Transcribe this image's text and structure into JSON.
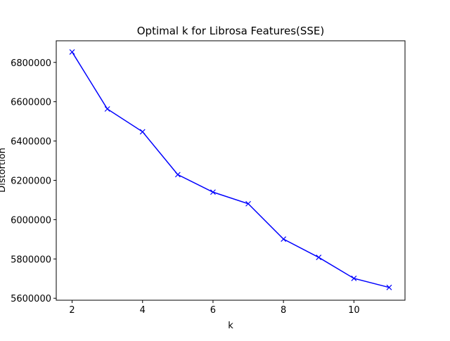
{
  "chart_data": {
    "type": "line",
    "title": "Optimal k for Librosa Features(SSE)",
    "xlabel": "k",
    "ylabel": "Distortion",
    "x": [
      2,
      3,
      4,
      5,
      6,
      7,
      8,
      9,
      10,
      11
    ],
    "series": [
      {
        "values": [
          6853000,
          6563000,
          6447000,
          6229000,
          6140000,
          6081000,
          5901000,
          5808000,
          5701000,
          5655000
        ],
        "color": "#0000ff",
        "marker": "x"
      }
    ],
    "xlim": [
      1.55,
      11.45
    ],
    "ylim": [
      5590000,
      6910000
    ],
    "xticks": [
      2,
      4,
      6,
      8,
      10
    ],
    "yticks": [
      5600000,
      5800000,
      6000000,
      6200000,
      6400000,
      6600000,
      6800000
    ],
    "grid": false
  }
}
